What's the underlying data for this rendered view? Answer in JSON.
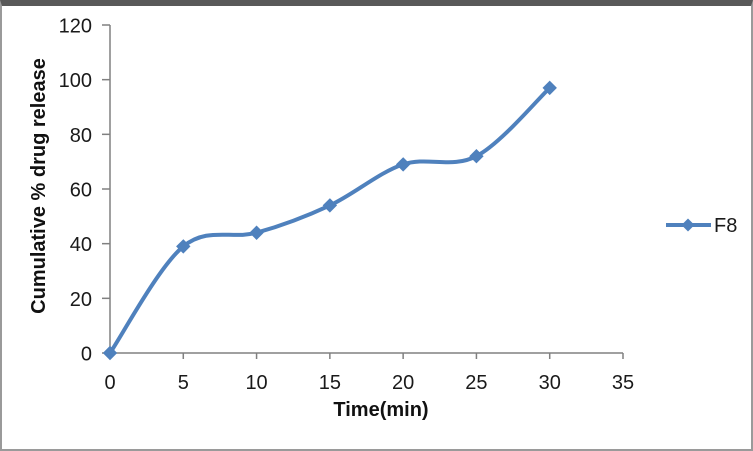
{
  "frame": {
    "top_bar_color": "#595959",
    "border_color": "#9a9a9a",
    "background": "#ffffff"
  },
  "chart_data": {
    "type": "line",
    "title": "",
    "xlabel": "Time(min)",
    "ylabel": "Cumulative % drug release",
    "xlim": [
      0,
      35
    ],
    "ylim": [
      0,
      120
    ],
    "x_ticks": [
      0,
      5,
      10,
      15,
      20,
      25,
      30,
      35
    ],
    "y_ticks": [
      0,
      20,
      40,
      60,
      80,
      100,
      120
    ],
    "grid": false,
    "smooth_lines": true,
    "legend_position": "right-middle",
    "axis_color": "#808080",
    "text_color": "#1a1a1a",
    "series": [
      {
        "name": "F8",
        "x": [
          0,
          5,
          10,
          15,
          20,
          25,
          30
        ],
        "values": [
          0,
          39,
          44,
          54,
          69,
          72,
          97
        ],
        "color": "#4F81BD",
        "marker": "diamond"
      }
    ]
  }
}
